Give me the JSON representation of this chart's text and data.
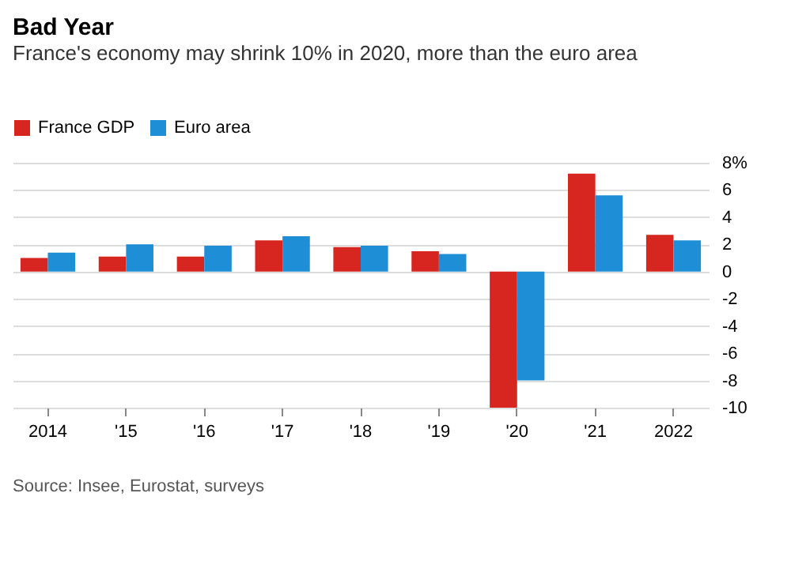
{
  "chart_data": {
    "type": "bar",
    "title": "Bad Year",
    "subtitle": "France's economy may shrink 10% in 2020, more than the euro area",
    "categories": [
      "2014",
      "'15",
      "'16",
      "'17",
      "'18",
      "'19",
      "'20",
      "'21",
      "2022"
    ],
    "series": [
      {
        "name": "France GDP",
        "color": "#d7251f",
        "values": [
          1.0,
          1.1,
          1.1,
          2.3,
          1.8,
          1.5,
          -10,
          7.2,
          2.7
        ]
      },
      {
        "name": "Euro area",
        "color": "#1e8fd6",
        "values": [
          1.4,
          2.0,
          1.9,
          2.6,
          1.9,
          1.3,
          -8,
          5.6,
          2.3
        ]
      }
    ],
    "ylim": [
      -10,
      8
    ],
    "yticks": [
      -10,
      -8,
      -6,
      -4,
      -2,
      0,
      2,
      4,
      6,
      {
        "value": 8,
        "label": "8%"
      }
    ],
    "grid": "y",
    "legend": "top left",
    "annotations": [
      "Source: Insee, Eurostat, surveys"
    ]
  }
}
